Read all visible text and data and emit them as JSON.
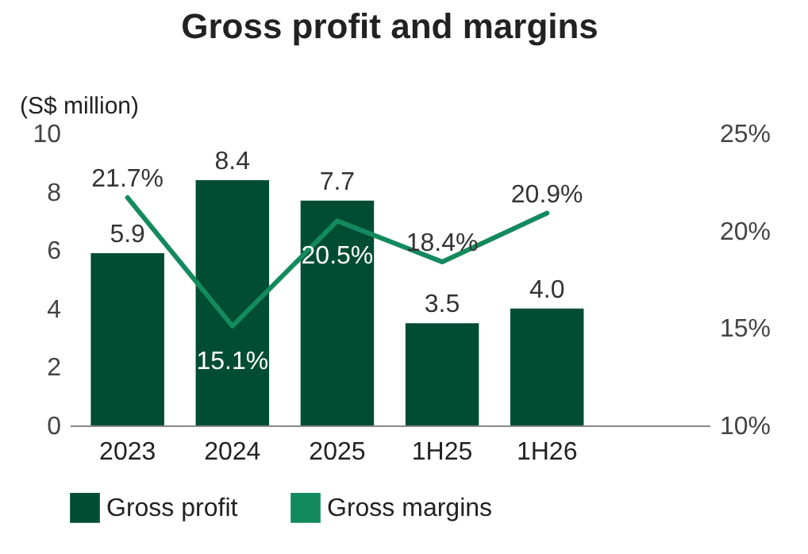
{
  "chart_data": {
    "type": "bar",
    "title": "Gross profit and margins",
    "ylabel": "(S$ million)",
    "categories": [
      "2023",
      "2024",
      "2025",
      null,
      "1H25",
      "1H26"
    ],
    "series": [
      {
        "name": "Gross profit",
        "color": "#004d33",
        "values": [
          5.9,
          8.4,
          7.7,
          null,
          3.5,
          4.0
        ],
        "value_labels": [
          "5.9",
          "8.4",
          "7.7",
          null,
          "3.5",
          "4.0"
        ]
      },
      {
        "name": "Gross margins",
        "type": "line",
        "axis": "y2",
        "color": "#138a5e",
        "values": [
          21.7,
          15.1,
          20.5,
          null,
          18.4,
          20.9
        ],
        "value_labels": [
          "21.7%",
          "15.1%",
          "20.5%",
          null,
          "18.4%",
          "20.9%"
        ]
      }
    ],
    "ylim": [
      0,
      10
    ],
    "yticks": [
      0,
      2,
      4,
      6,
      8,
      10
    ],
    "y2lim": [
      10,
      25
    ],
    "y2ticks": [
      {
        "value": 10,
        "label": "10%"
      },
      {
        "value": 15,
        "label": "15%"
      },
      {
        "value": 20,
        "label": "20%"
      },
      {
        "value": 25,
        "label": "25%"
      }
    ],
    "grid": false,
    "legend": "bottom"
  }
}
